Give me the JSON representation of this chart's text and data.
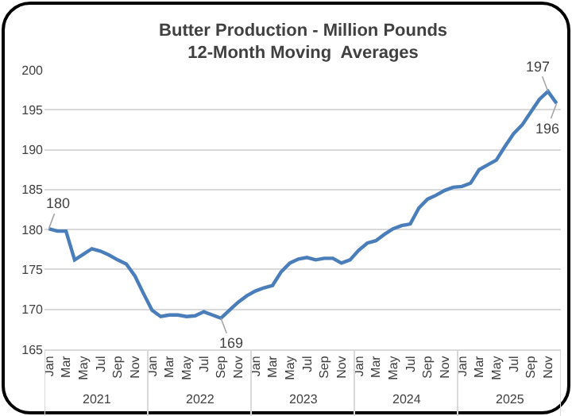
{
  "chart_data": {
    "type": "line",
    "title": "Butter Production - Million Pounds\n12-Month Moving  Averages",
    "categories": [
      "Jan",
      null,
      "Mar",
      null,
      "May",
      null,
      "Jul",
      null,
      "Sep",
      null,
      "Nov",
      null,
      "Jan",
      null,
      "Mar",
      null,
      "May",
      null,
      "Jul",
      null,
      "Sep",
      null,
      "Nov",
      null,
      "Jan",
      null,
      "Mar",
      null,
      "May",
      null,
      "Jul",
      null,
      "Sep",
      null,
      "Nov",
      null,
      "Jan",
      null,
      "Mar",
      null,
      "May",
      null,
      "Jul",
      null,
      "Sep",
      null,
      "Nov",
      null,
      "Jan",
      null,
      "Mar",
      null,
      "May",
      null,
      "Jul",
      null,
      "Sep",
      null,
      "Nov",
      null
    ],
    "series": [
      {
        "color": "#4a7ebb",
        "values": [
          180.1,
          179.8,
          179.8,
          176.2,
          176.9,
          177.6,
          177.3,
          176.8,
          176.2,
          175.7,
          174.2,
          172.0,
          169.9,
          169.1,
          169.3,
          169.3,
          169.1,
          169.2,
          169.7,
          169.3,
          168.9,
          169.9,
          170.9,
          171.7,
          172.3,
          172.7,
          173.0,
          174.7,
          175.8,
          176.3,
          176.5,
          176.2,
          176.4,
          176.4,
          175.8,
          176.2,
          177.4,
          178.3,
          178.6,
          179.4,
          180.1,
          180.5,
          180.7,
          182.7,
          183.8,
          184.3,
          184.9,
          185.3,
          185.4,
          185.8,
          187.5,
          188.1,
          188.7,
          190.4,
          192.0,
          193.1,
          194.7,
          196.3,
          197.3,
          195.8
        ],
        "value_labels": [
          "180",
          null,
          null,
          null,
          null,
          null,
          null,
          null,
          null,
          null,
          null,
          null,
          null,
          null,
          null,
          null,
          null,
          null,
          null,
          null,
          "169",
          null,
          null,
          null,
          null,
          null,
          null,
          null,
          null,
          null,
          null,
          null,
          null,
          null,
          null,
          null,
          null,
          null,
          null,
          null,
          null,
          null,
          null,
          null,
          null,
          null,
          null,
          null,
          null,
          null,
          null,
          null,
          null,
          null,
          null,
          null,
          null,
          null,
          "197",
          "196"
        ]
      }
    ],
    "annotations": [
      "2021",
      "2022",
      "2023",
      "2024",
      "2025"
    ],
    "ylim": [
      165,
      200
    ],
    "yticks": [
      165,
      170,
      175,
      180,
      185,
      190,
      195,
      200
    ],
    "grid": "y",
    "marker": "none",
    "line_style": "solid"
  }
}
